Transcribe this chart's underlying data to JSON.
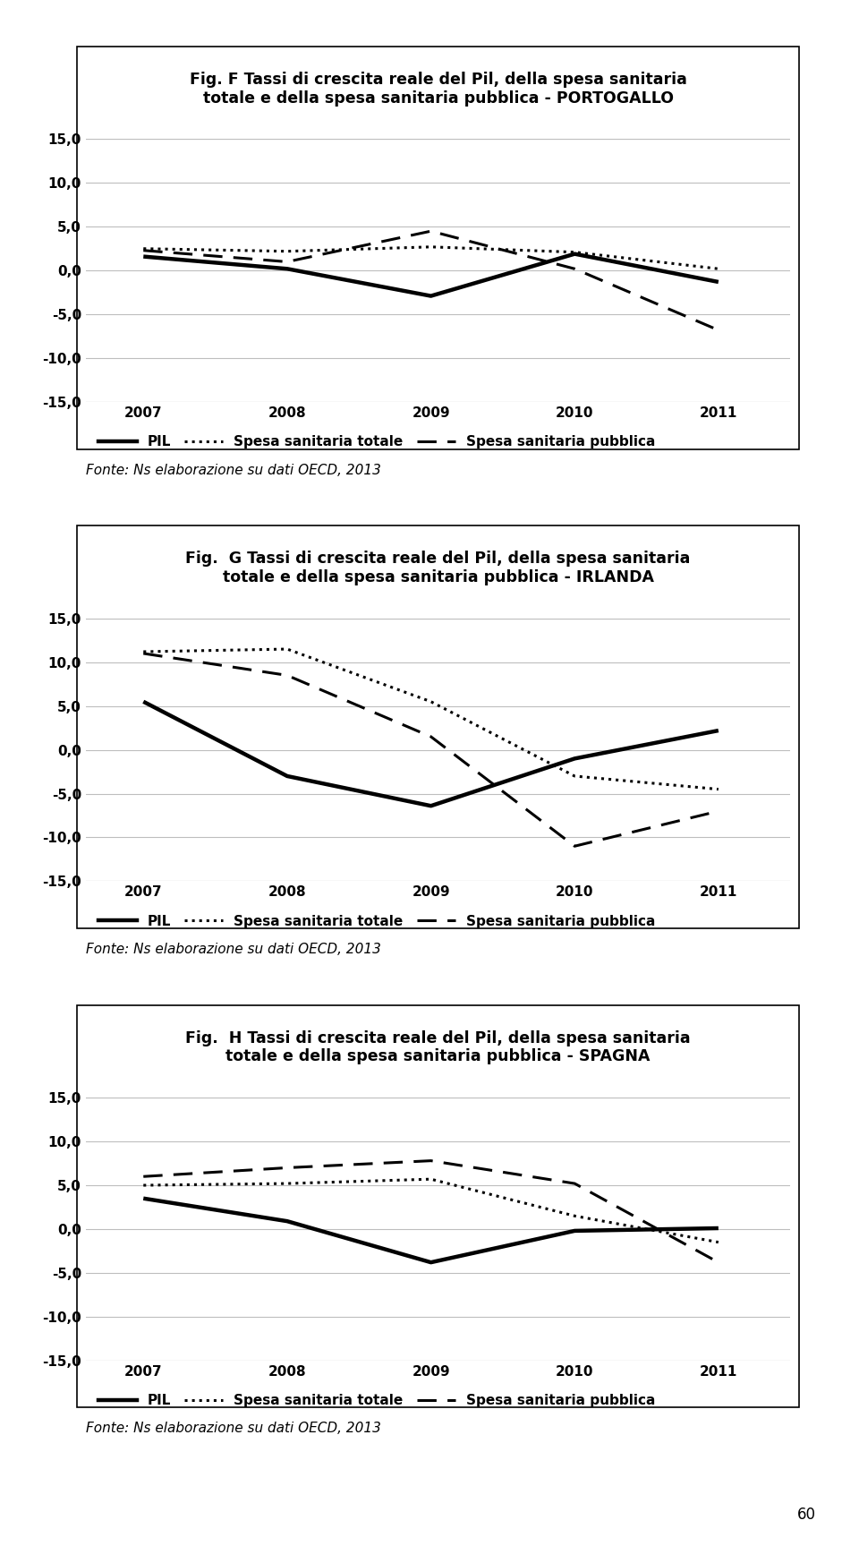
{
  "years": [
    2007,
    2008,
    2009,
    2010,
    2011
  ],
  "charts": [
    {
      "title_line1": "Fig. F Tassi di crescita reale del Pil, della spesa sanitaria",
      "title_line2": "totale e della spesa sanitaria pubblica - PORTOGALLO",
      "pil": [
        1.6,
        0.2,
        -2.9,
        1.9,
        -1.3
      ],
      "totale": [
        2.5,
        2.2,
        2.7,
        2.1,
        0.2
      ],
      "pubblica": [
        2.3,
        1.0,
        4.5,
        0.2,
        -6.8
      ]
    },
    {
      "title_line1": "Fig.  G Tassi di crescita reale del Pil, della spesa sanitaria",
      "title_line2": "totale e della spesa sanitaria pubblica - IRLANDA",
      "pil": [
        5.5,
        -3.0,
        -6.4,
        -1.0,
        2.2
      ],
      "totale": [
        11.2,
        11.5,
        5.5,
        -3.0,
        -4.5
      ],
      "pubblica": [
        11.0,
        8.5,
        1.5,
        -11.0,
        -7.0
      ]
    },
    {
      "title_line1": "Fig.  H Tassi di crescita reale del Pil, della spesa sanitaria",
      "title_line2": "totale e della spesa sanitaria pubblica - SPAGNA",
      "pil": [
        3.5,
        0.9,
        -3.8,
        -0.2,
        0.1
      ],
      "totale": [
        5.0,
        5.2,
        5.7,
        1.5,
        -1.5
      ],
      "pubblica": [
        6.0,
        7.0,
        7.8,
        5.2,
        -3.8
      ]
    }
  ],
  "fonte": "Fonte: Ns elaborazione su dati OECD, 2013",
  "legend_pil": "PIL",
  "legend_totale": "Spesa sanitaria totale",
  "legend_pubblica": "Spesa sanitaria pubblica",
  "ylim": [
    -15.0,
    15.0
  ],
  "yticks": [
    -15.0,
    -10.0,
    -5.0,
    0.0,
    5.0,
    10.0,
    15.0
  ],
  "ytick_labels": [
    "-15,0",
    "-10,0",
    "-5,0",
    "0,0",
    "5,0",
    "10,0",
    "15,0"
  ],
  "background_color": "#ffffff",
  "line_color": "#000000",
  "grid_color": "#bebebe",
  "title_fontsize": 12.5,
  "axis_fontsize": 11,
  "legend_fontsize": 11,
  "fonte_fontsize": 11,
  "page_number": "60"
}
